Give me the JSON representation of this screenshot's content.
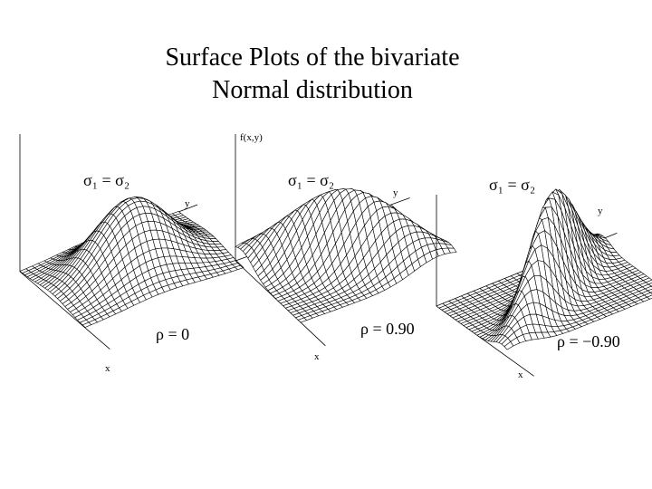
{
  "header": {
    "title_lines": [
      "Surface Plots of the bivariate",
      "Normal distribution"
    ]
  },
  "vertical_axis_label": "f(x,y)",
  "panels": [
    {
      "sigma_label": "σ₁ = σ₂",
      "rho_label": "ρ = 0",
      "x_label": "x",
      "y_label": "y"
    },
    {
      "sigma_label": "σ₁ = σ₂",
      "rho_label": "ρ = 0.90",
      "x_label": "x",
      "y_label": "y"
    },
    {
      "sigma_label": "σ₁ = σ₂",
      "rho_label": "ρ = −0.90",
      "x_label": "x",
      "y_label": "y"
    }
  ]
}
